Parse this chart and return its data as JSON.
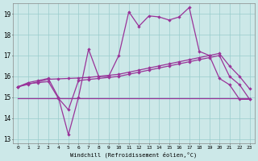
{
  "xlabel": "Windchill (Refroidissement éolien,°C)",
  "bg_color": "#cce8e8",
  "grid_color": "#99cccc",
  "line_color": "#993399",
  "xlim": [
    -0.5,
    23.5
  ],
  "ylim": [
    12.8,
    19.5
  ],
  "xtick_labels": [
    "0",
    "1",
    "2",
    "3",
    "4",
    "5",
    "6",
    "7",
    "8",
    "9",
    "10",
    "11",
    "12",
    "13",
    "14",
    "15",
    "16",
    "17",
    "18",
    "19",
    "20",
    "21",
    "22",
    "23"
  ],
  "ytick_values": [
    13,
    14,
    15,
    16,
    17,
    18,
    19
  ],
  "line1_x": [
    0,
    1,
    2,
    3,
    4,
    5,
    6,
    7,
    8,
    9,
    10,
    11,
    12,
    13,
    14,
    15,
    16,
    17,
    18,
    19,
    20,
    21,
    22,
    23
  ],
  "line1_y": [
    15.5,
    15.7,
    15.8,
    15.9,
    15.0,
    13.2,
    15.0,
    17.3,
    16.0,
    16.0,
    17.0,
    19.1,
    18.4,
    18.9,
    18.85,
    18.7,
    18.85,
    19.3,
    17.2,
    17.0,
    15.9,
    15.6,
    14.9,
    14.9
  ],
  "line2_x": [
    0,
    1,
    2,
    3,
    4,
    5,
    6,
    7,
    8,
    9,
    10,
    11,
    12,
    13,
    14,
    15,
    16,
    17,
    18,
    19,
    20,
    21,
    22,
    23
  ],
  "line2_y": [
    15.5,
    15.65,
    15.7,
    15.75,
    14.95,
    14.4,
    15.8,
    15.85,
    15.9,
    15.95,
    16.0,
    16.1,
    16.2,
    16.3,
    16.4,
    16.5,
    16.6,
    16.7,
    16.8,
    16.9,
    17.0,
    16.0,
    15.6,
    14.9
  ],
  "line3_x": [
    0,
    23
  ],
  "line3_y": [
    14.95,
    14.95
  ],
  "line4_x": [
    0,
    1,
    2,
    3,
    4,
    5,
    6,
    7,
    8,
    9,
    10,
    11,
    12,
    13,
    14,
    15,
    16,
    17,
    18,
    19,
    20,
    21,
    22,
    23
  ],
  "line4_y": [
    15.5,
    15.62,
    15.74,
    15.86,
    15.88,
    15.9,
    15.92,
    15.95,
    16.0,
    16.05,
    16.1,
    16.2,
    16.3,
    16.4,
    16.5,
    16.6,
    16.7,
    16.8,
    16.9,
    17.0,
    17.1,
    16.5,
    16.0,
    15.4
  ]
}
